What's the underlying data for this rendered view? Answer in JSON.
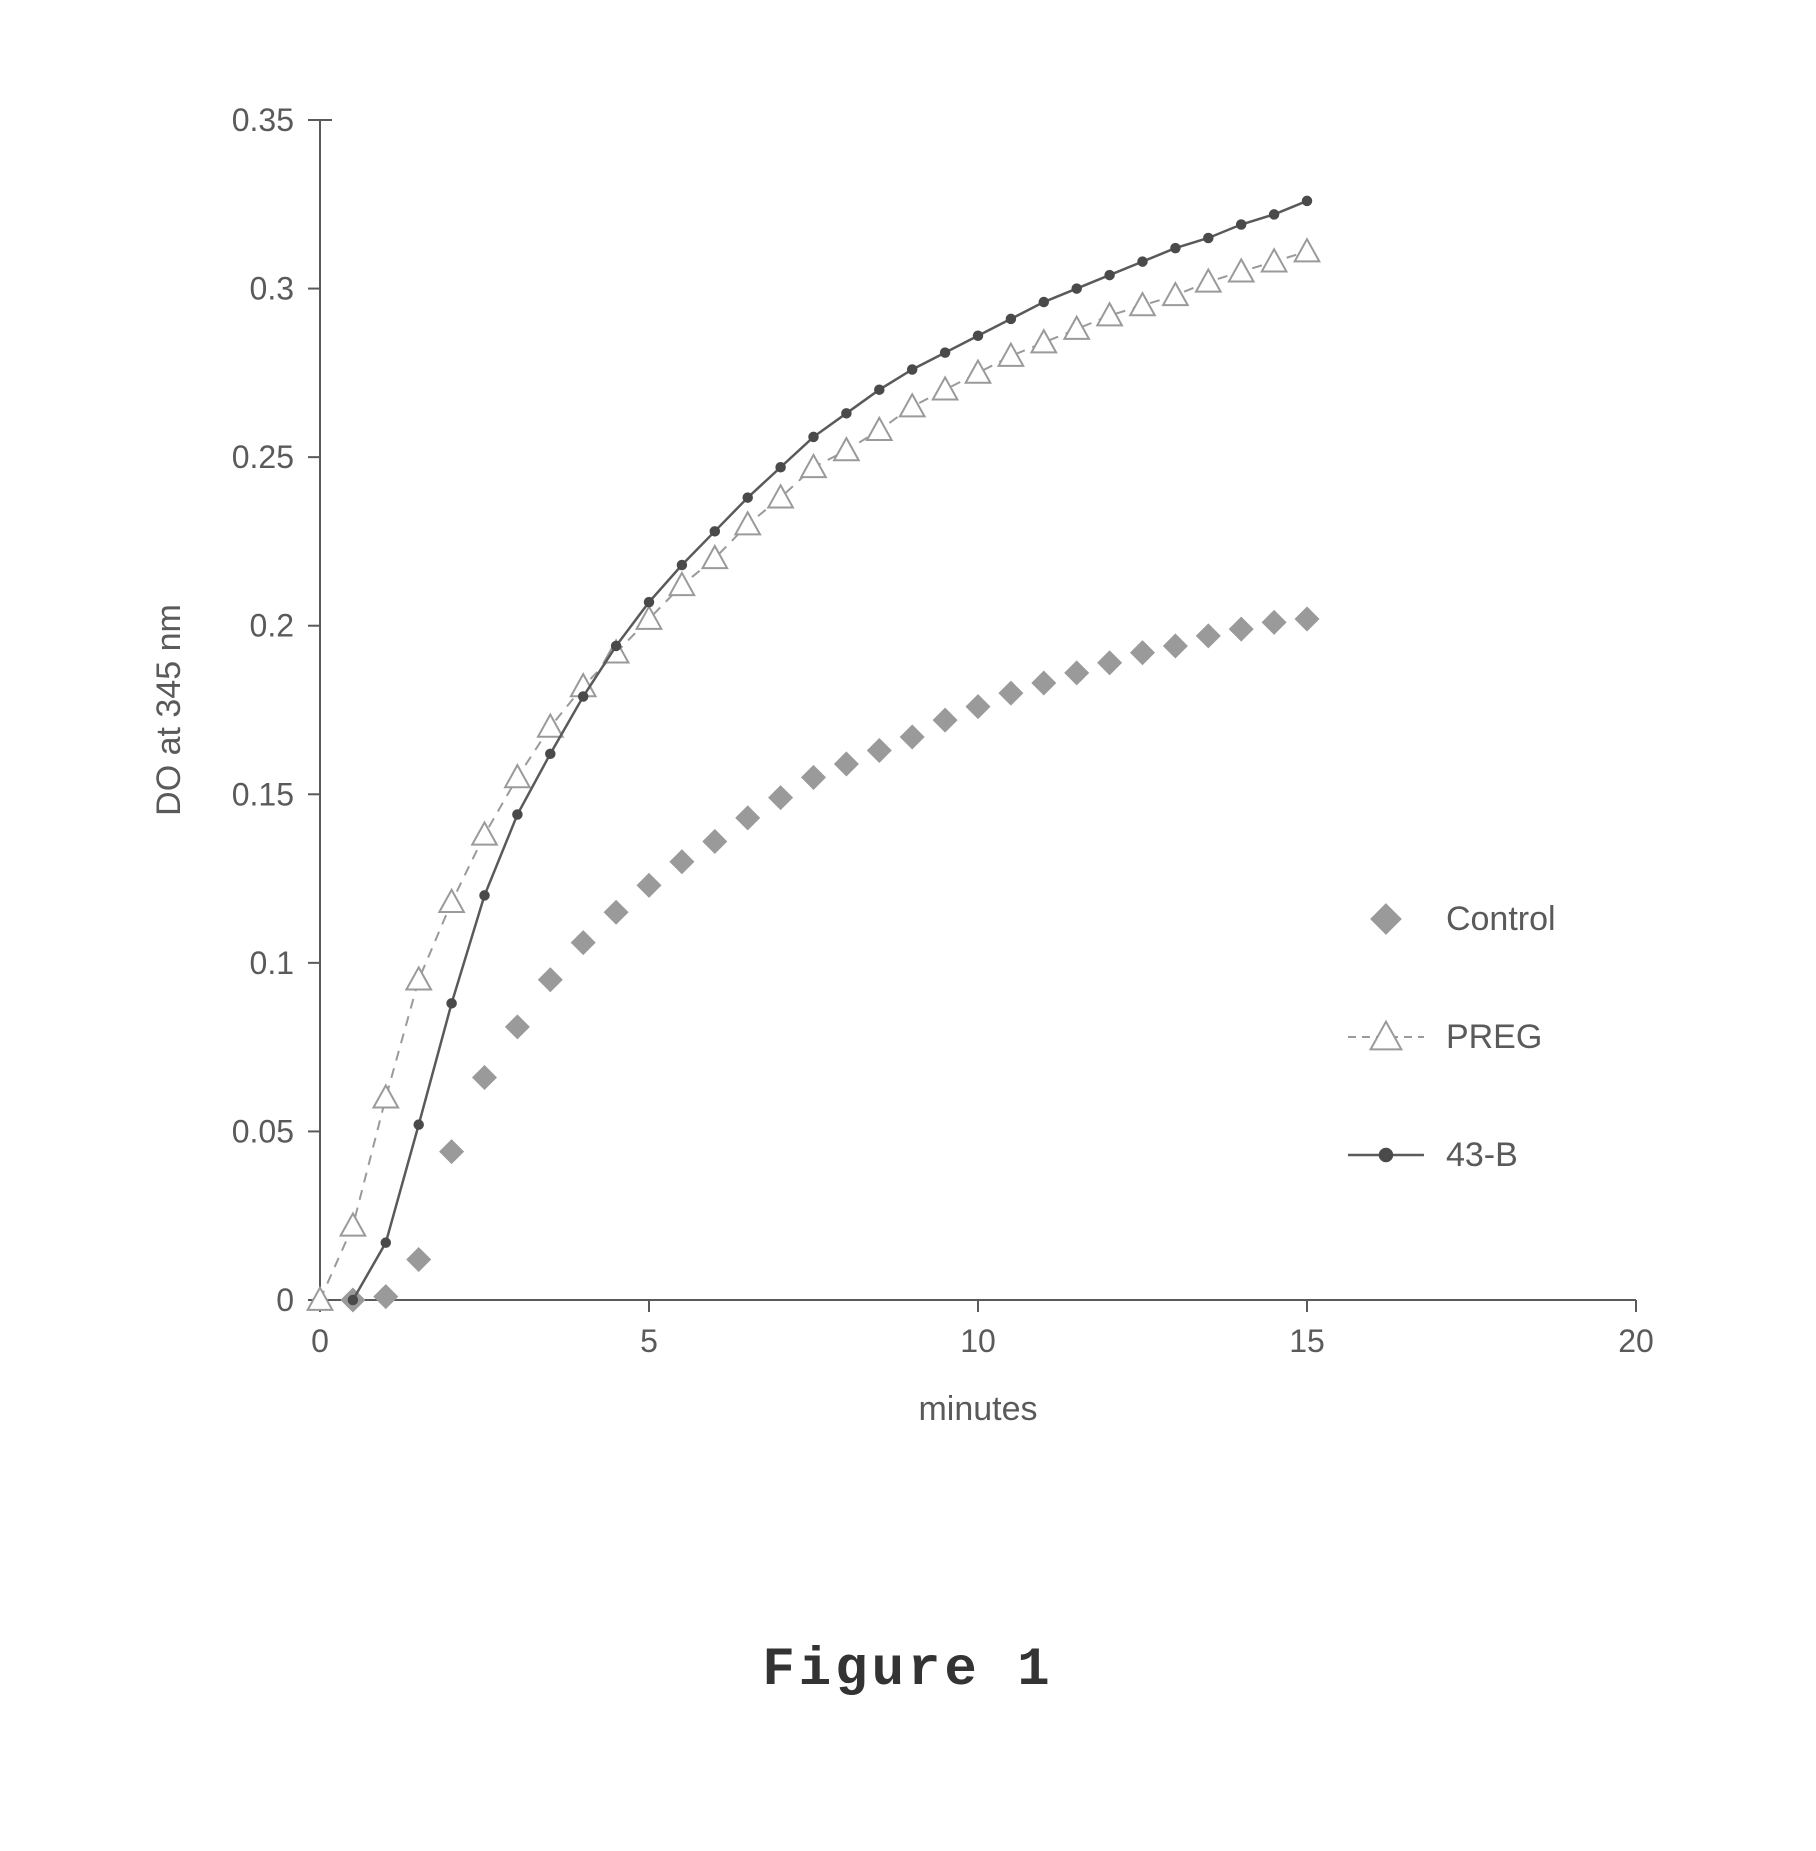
{
  "figure_caption": "Figure 1",
  "chart": {
    "type": "line",
    "background_color": "#ffffff",
    "axis_color": "#5a5a5a",
    "tick_color": "#5a5a5a",
    "text_color": "#5a5a5a",
    "legend_text_color": "#5a5a5a",
    "tick_fontsize": 32,
    "label_fontsize": 34,
    "legend_fontsize": 34,
    "xlabel": "minutes",
    "ylabel": "DO at 345 nm",
    "xlim": [
      0,
      20
    ],
    "ylim": [
      0,
      0.35
    ],
    "xticks": [
      0,
      5,
      10,
      15,
      20
    ],
    "yticks": [
      0,
      0.05,
      0.1,
      0.15,
      0.2,
      0.25,
      0.3,
      0.35
    ],
    "axis_line_width": 2,
    "tick_length": 12,
    "series": [
      {
        "name": "Control",
        "marker": "diamond",
        "marker_size": 14,
        "marker_fill": "#9a9a9a",
        "marker_stroke": "#9a9a9a",
        "line_style": "none",
        "line_color": "#9a9a9a",
        "line_width": 0,
        "data": [
          [
            0.5,
            0.0
          ],
          [
            1.0,
            0.001
          ],
          [
            1.5,
            0.012
          ],
          [
            2.0,
            0.044
          ],
          [
            2.5,
            0.066
          ],
          [
            3.0,
            0.081
          ],
          [
            3.5,
            0.095
          ],
          [
            4.0,
            0.106
          ],
          [
            4.5,
            0.115
          ],
          [
            5.0,
            0.123
          ],
          [
            5.5,
            0.13
          ],
          [
            6.0,
            0.136
          ],
          [
            6.5,
            0.143
          ],
          [
            7.0,
            0.149
          ],
          [
            7.5,
            0.155
          ],
          [
            8.0,
            0.159
          ],
          [
            8.5,
            0.163
          ],
          [
            9.0,
            0.167
          ],
          [
            9.5,
            0.172
          ],
          [
            10.0,
            0.176
          ],
          [
            10.5,
            0.18
          ],
          [
            11.0,
            0.183
          ],
          [
            11.5,
            0.186
          ],
          [
            12.0,
            0.189
          ],
          [
            12.5,
            0.192
          ],
          [
            13.0,
            0.194
          ],
          [
            13.5,
            0.197
          ],
          [
            14.0,
            0.199
          ],
          [
            14.5,
            0.201
          ],
          [
            15.0,
            0.202
          ]
        ]
      },
      {
        "name": "PREG",
        "marker": "triangle",
        "marker_size": 16,
        "marker_fill": "#ffffff",
        "marker_stroke": "#9a9a9a",
        "line_style": "dashed",
        "line_color": "#9a9a9a",
        "line_width": 2,
        "data": [
          [
            0.0,
            0.0
          ],
          [
            0.5,
            0.022
          ],
          [
            1.0,
            0.06
          ],
          [
            1.5,
            0.095
          ],
          [
            2.0,
            0.118
          ],
          [
            2.5,
            0.138
          ],
          [
            3.0,
            0.155
          ],
          [
            3.5,
            0.17
          ],
          [
            4.0,
            0.182
          ],
          [
            4.5,
            0.192
          ],
          [
            5.0,
            0.202
          ],
          [
            5.5,
            0.212
          ],
          [
            6.0,
            0.22
          ],
          [
            6.5,
            0.23
          ],
          [
            7.0,
            0.238
          ],
          [
            7.5,
            0.247
          ],
          [
            8.0,
            0.252
          ],
          [
            8.5,
            0.258
          ],
          [
            9.0,
            0.265
          ],
          [
            9.5,
            0.27
          ],
          [
            10.0,
            0.275
          ],
          [
            10.5,
            0.28
          ],
          [
            11.0,
            0.284
          ],
          [
            11.5,
            0.288
          ],
          [
            12.0,
            0.292
          ],
          [
            12.5,
            0.295
          ],
          [
            13.0,
            0.298
          ],
          [
            13.5,
            0.302
          ],
          [
            14.0,
            0.305
          ],
          [
            14.5,
            0.308
          ],
          [
            15.0,
            0.311
          ]
        ]
      },
      {
        "name": "43-B",
        "marker": "circle",
        "marker_size": 9,
        "marker_fill": "#4a4a4a",
        "marker_stroke": "#4a4a4a",
        "line_style": "solid",
        "line_color": "#5a5a5a",
        "line_width": 2.5,
        "data": [
          [
            0.5,
            0.0
          ],
          [
            1.0,
            0.017
          ],
          [
            1.5,
            0.052
          ],
          [
            2.0,
            0.088
          ],
          [
            2.5,
            0.12
          ],
          [
            3.0,
            0.144
          ],
          [
            3.5,
            0.162
          ],
          [
            4.0,
            0.179
          ],
          [
            4.5,
            0.194
          ],
          [
            5.0,
            0.207
          ],
          [
            5.5,
            0.218
          ],
          [
            6.0,
            0.228
          ],
          [
            6.5,
            0.238
          ],
          [
            7.0,
            0.247
          ],
          [
            7.5,
            0.256
          ],
          [
            8.0,
            0.263
          ],
          [
            8.5,
            0.27
          ],
          [
            9.0,
            0.276
          ],
          [
            9.5,
            0.281
          ],
          [
            10.0,
            0.286
          ],
          [
            10.5,
            0.291
          ],
          [
            11.0,
            0.296
          ],
          [
            11.5,
            0.3
          ],
          [
            12.0,
            0.304
          ],
          [
            12.5,
            0.308
          ],
          [
            13.0,
            0.312
          ],
          [
            13.5,
            0.315
          ],
          [
            14.0,
            0.319
          ],
          [
            14.5,
            0.322
          ],
          [
            15.0,
            0.326
          ]
        ]
      }
    ],
    "legend": {
      "x": 16.2,
      "y_start": 0.113,
      "y_step": 0.035,
      "swatch_gap": 0.6
    }
  }
}
